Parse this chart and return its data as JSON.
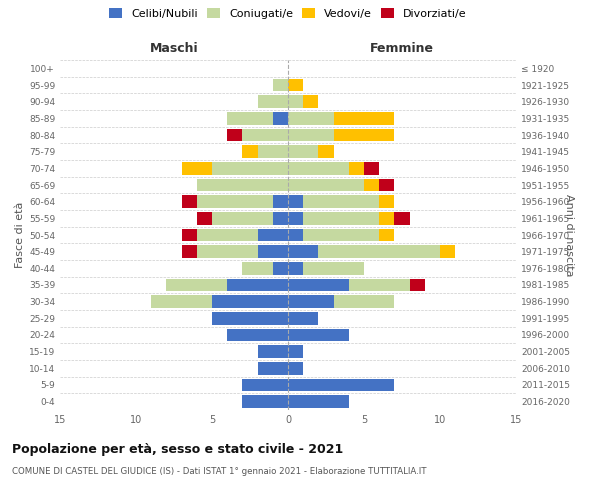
{
  "age_groups": [
    "0-4",
    "5-9",
    "10-14",
    "15-19",
    "20-24",
    "25-29",
    "30-34",
    "35-39",
    "40-44",
    "45-49",
    "50-54",
    "55-59",
    "60-64",
    "65-69",
    "70-74",
    "75-79",
    "80-84",
    "85-89",
    "90-94",
    "95-99",
    "100+"
  ],
  "birth_years": [
    "2016-2020",
    "2011-2015",
    "2006-2010",
    "2001-2005",
    "1996-2000",
    "1991-1995",
    "1986-1990",
    "1981-1985",
    "1976-1980",
    "1971-1975",
    "1966-1970",
    "1961-1965",
    "1956-1960",
    "1951-1955",
    "1946-1950",
    "1941-1945",
    "1936-1940",
    "1931-1935",
    "1926-1930",
    "1921-1925",
    "≤ 1920"
  ],
  "male": {
    "celibi": [
      3,
      3,
      2,
      2,
      4,
      5,
      5,
      4,
      1,
      2,
      2,
      1,
      1,
      0,
      0,
      0,
      0,
      1,
      0,
      0,
      0
    ],
    "coniugati": [
      0,
      0,
      0,
      0,
      0,
      0,
      4,
      4,
      2,
      4,
      4,
      4,
      5,
      6,
      5,
      2,
      3,
      3,
      2,
      1,
      0
    ],
    "vedovi": [
      0,
      0,
      0,
      0,
      0,
      0,
      0,
      0,
      0,
      0,
      0,
      0,
      0,
      0,
      2,
      1,
      0,
      0,
      0,
      0,
      0
    ],
    "divorziati": [
      0,
      0,
      0,
      0,
      0,
      0,
      0,
      0,
      0,
      1,
      1,
      1,
      1,
      0,
      0,
      0,
      1,
      0,
      0,
      0,
      0
    ]
  },
  "female": {
    "nubili": [
      4,
      7,
      1,
      1,
      4,
      2,
      3,
      4,
      1,
      2,
      1,
      1,
      1,
      0,
      0,
      0,
      0,
      0,
      0,
      0,
      0
    ],
    "coniugate": [
      0,
      0,
      0,
      0,
      0,
      0,
      4,
      4,
      4,
      8,
      5,
      5,
      5,
      5,
      4,
      2,
      3,
      3,
      1,
      0,
      0
    ],
    "vedove": [
      0,
      0,
      0,
      0,
      0,
      0,
      0,
      0,
      0,
      1,
      1,
      1,
      1,
      1,
      1,
      1,
      4,
      4,
      1,
      1,
      0
    ],
    "divorziate": [
      0,
      0,
      0,
      0,
      0,
      0,
      0,
      1,
      0,
      0,
      0,
      1,
      0,
      1,
      1,
      0,
      0,
      0,
      0,
      0,
      0
    ]
  },
  "colors": {
    "celibi": "#4472c4",
    "coniugati": "#c5d9a0",
    "vedovi": "#ffc000",
    "divorziati": "#c0001a"
  },
  "title": "Popolazione per età, sesso e stato civile - 2021",
  "subtitle": "COMUNE DI CASTEL DEL GIUDICE (IS) - Dati ISTAT 1° gennaio 2021 - Elaborazione TUTTITALIA.IT",
  "xlabel_left": "Maschi",
  "xlabel_right": "Femmine",
  "ylabel_left": "Fasce di età",
  "ylabel_right": "Anni di nascita",
  "xlim": 15,
  "legend_labels": [
    "Celibi/Nubili",
    "Coniugati/e",
    "Vedovi/e",
    "Divorziati/e"
  ],
  "background_color": "#ffffff"
}
